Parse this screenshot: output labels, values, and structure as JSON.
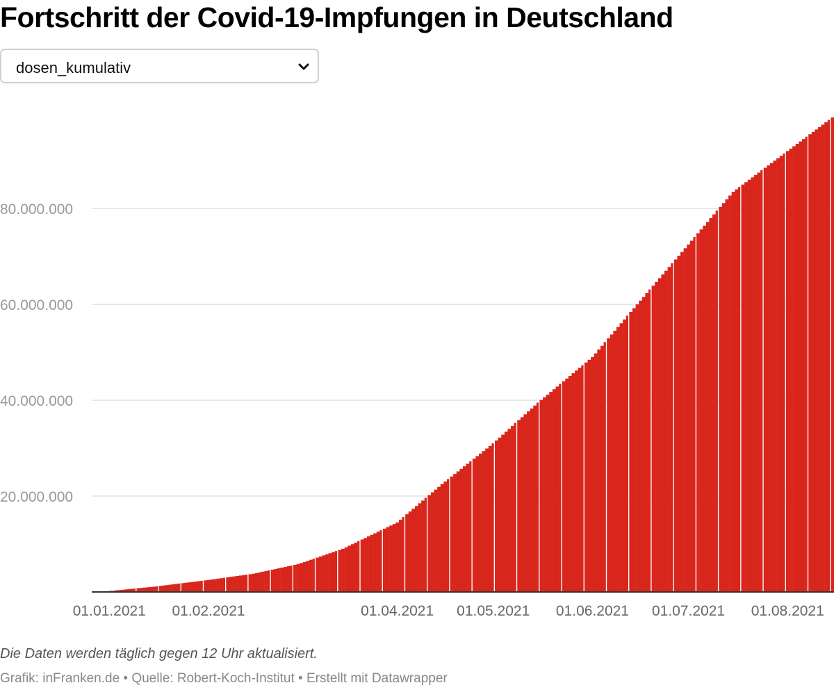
{
  "title": "Fortschritt der Covid-19-Impfungen in Deutschland",
  "dropdown": {
    "selected": "dosen_kumulativ"
  },
  "note": "Die Daten werden täglich gegen 12 Uhr aktualisiert.",
  "credits": "Grafik: inFranken.de • Quelle: Robert-Koch-Institut • Erstellt mit Datawrapper",
  "colors": {
    "bar": "#d9261c",
    "grid": "#e2e2e2",
    "axis": "#333333",
    "tick_label": "#999999",
    "x_label": "#666666"
  },
  "chart_data": {
    "type": "bar",
    "series_name": "dosen_kumulativ",
    "title": "Fortschritt der Covid-19-Impfungen in Deutschland",
    "x_start": "2020-12-27",
    "x_end": "2021-08-15",
    "ylim": [
      0,
      98000000
    ],
    "y_ticks": [
      {
        "value": 20000000,
        "label": "20.000.000"
      },
      {
        "value": 40000000,
        "label": "40.000.000"
      },
      {
        "value": 60000000,
        "label": "60.000.000"
      },
      {
        "value": 80000000,
        "label": "80.000.000"
      }
    ],
    "x_ticks": [
      {
        "date": "2021-01-01",
        "label": "01.01.2021"
      },
      {
        "date": "2021-02-01",
        "label": "01.02.2021"
      },
      {
        "date": "2021-04-01",
        "label": "01.04.2021"
      },
      {
        "date": "2021-05-01",
        "label": "01.05.2021"
      },
      {
        "date": "2021-06-01",
        "label": "01.06.2021"
      },
      {
        "date": "2021-07-01",
        "label": "01.07.2021"
      },
      {
        "date": "2021-08-01",
        "label": "01.08.2021"
      }
    ],
    "anchors": [
      {
        "date": "2020-12-27",
        "value": 0
      },
      {
        "date": "2021-01-01",
        "value": 200000
      },
      {
        "date": "2021-01-15",
        "value": 1100000
      },
      {
        "date": "2021-02-01",
        "value": 2500000
      },
      {
        "date": "2021-02-15",
        "value": 3800000
      },
      {
        "date": "2021-03-01",
        "value": 5800000
      },
      {
        "date": "2021-03-15",
        "value": 9000000
      },
      {
        "date": "2021-04-01",
        "value": 14500000
      },
      {
        "date": "2021-04-15",
        "value": 22500000
      },
      {
        "date": "2021-05-01",
        "value": 31000000
      },
      {
        "date": "2021-05-15",
        "value": 39500000
      },
      {
        "date": "2021-06-01",
        "value": 49000000
      },
      {
        "date": "2021-06-15",
        "value": 60000000
      },
      {
        "date": "2021-07-01",
        "value": 72500000
      },
      {
        "date": "2021-07-15",
        "value": 83500000
      },
      {
        "date": "2021-08-01",
        "value": 92000000
      },
      {
        "date": "2021-08-15",
        "value": 99000000
      }
    ]
  }
}
